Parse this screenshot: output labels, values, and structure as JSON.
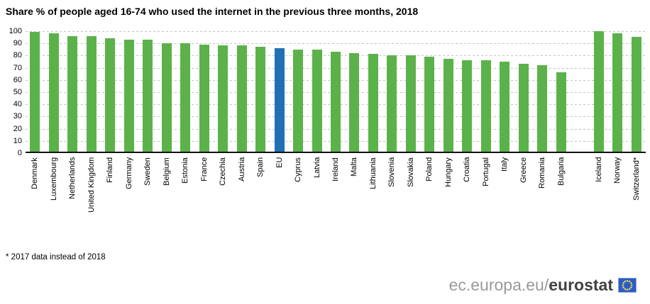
{
  "footnote": "* 2017 data instead of 2018",
  "branding": {
    "url_prefix": "ec.europa.eu/",
    "brand_name": "eurostat",
    "flag_icon": "eu-flag-icon"
  },
  "colors": {
    "bar_green": "#5cb24a",
    "bar_blue_eu": "#1f71b4",
    "gridline": "#c3c3c3",
    "axis": "#111111",
    "text": "#000000",
    "brand_gray": "#9a9a9a",
    "brand_dark": "#404040",
    "flag_blue": "#2e5ac8",
    "flag_stars": "#d9dc4b"
  },
  "chart_data": {
    "type": "bar",
    "title": "Share % of people aged 16-74 who used the internet in the previous three months, 2018",
    "xlabel": "",
    "ylabel": "",
    "ylim": [
      0,
      100
    ],
    "yticks": [
      0,
      10,
      20,
      30,
      40,
      50,
      60,
      70,
      80,
      90,
      100
    ],
    "grid": "horizontal dashed gridlines, solid black baseline at 0",
    "legend": "none",
    "x_label_rotation": "90deg bottom-to-top",
    "highlight_category": "EU",
    "gap_after_category": "Bulgaria",
    "categories": [
      "Denmark",
      "Luxembourg",
      "Netherlands",
      "United Kingdom",
      "Finland",
      "Germany",
      "Sweden",
      "Belgium",
      "Estonia",
      "France",
      "Czechia",
      "Austria",
      "Spain",
      "EU",
      "Cyprus",
      "Latvia",
      "Ireland",
      "Malta",
      "Lithuania",
      "Slovenia",
      "Slovakia",
      "Poland",
      "Hungary",
      "Croatia",
      "Portugal",
      "Italy",
      "Greece",
      "Romania",
      "Bulgaria",
      "Iceland",
      "Norway",
      "Switzerland*"
    ],
    "values": [
      98,
      97,
      95,
      95,
      93,
      92,
      92,
      89,
      89,
      88,
      87,
      87,
      86,
      85,
      84,
      84,
      82,
      81,
      80,
      79,
      79,
      78,
      76,
      75,
      75,
      74,
      72,
      71,
      65,
      99,
      97,
      94
    ]
  }
}
